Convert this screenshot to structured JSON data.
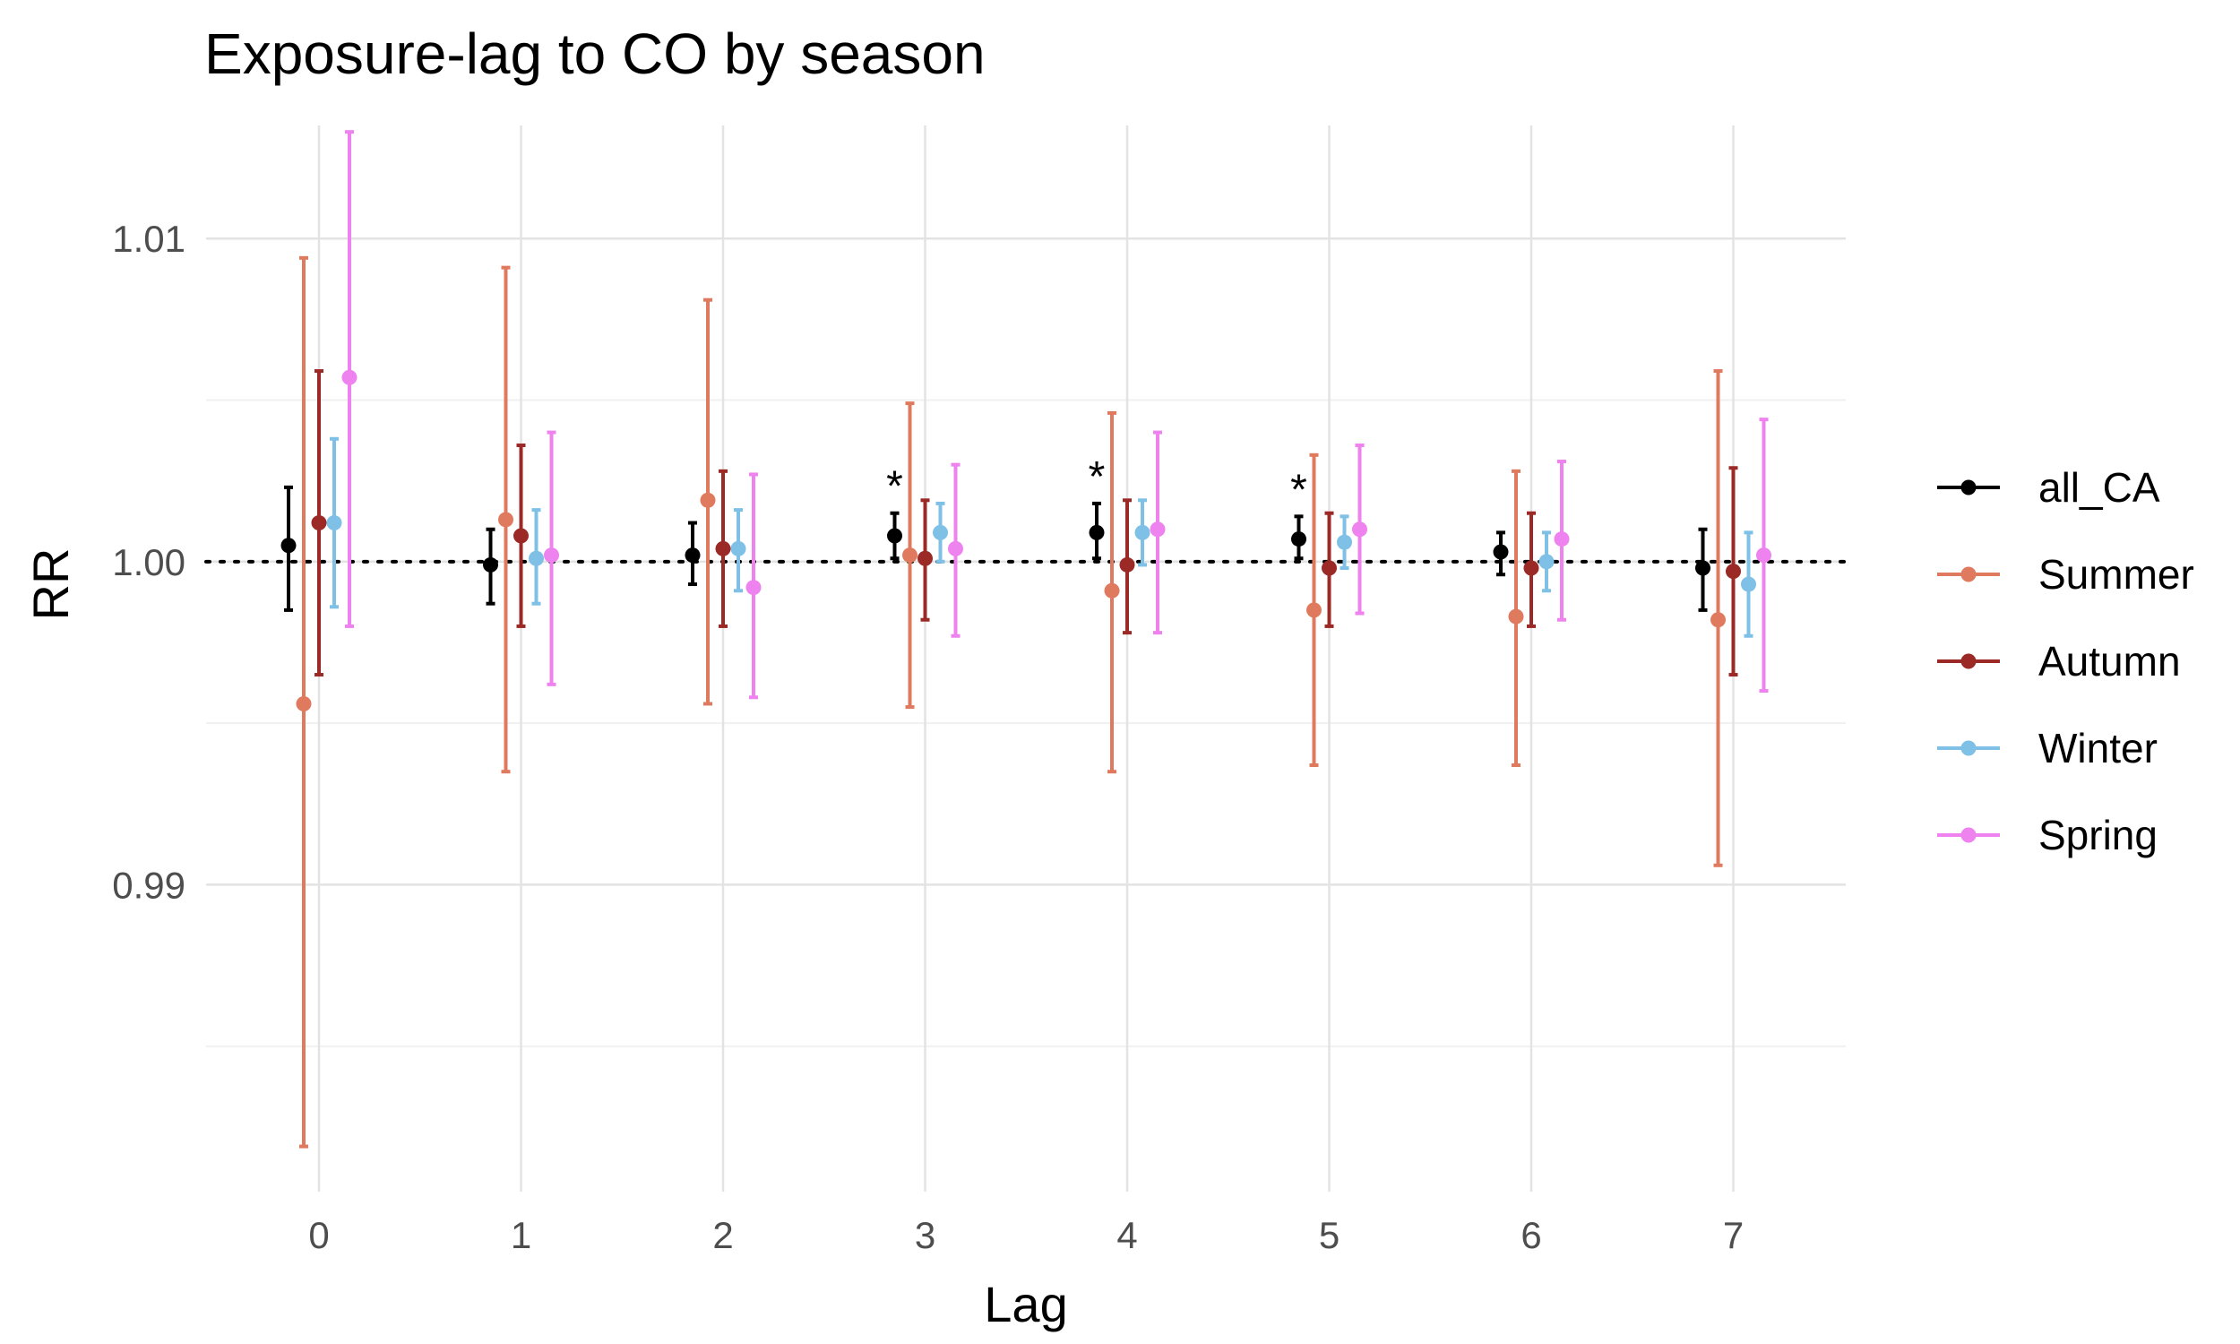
{
  "chart_data": {
    "type": "scatter",
    "title": "Exposure-lag to CO by season",
    "xlabel": "Lag",
    "ylabel": "RR",
    "categories": [
      "0",
      "1",
      "2",
      "3",
      "4",
      "5",
      "6",
      "7"
    ],
    "y_ticks": [
      "0.99",
      "1.00",
      "1.01"
    ],
    "y_tick_values": [
      0.99,
      1.0,
      1.01
    ],
    "ylim": [
      0.9805,
      1.0135
    ],
    "reference_line": 1.0,
    "grid": true,
    "legend_position": "right",
    "significance_marker": "*",
    "series": [
      {
        "name": "all_CA",
        "color": "#000000",
        "points": [
          {
            "x": "0",
            "y": 1.0005,
            "lo": 0.9985,
            "hi": 1.0023
          },
          {
            "x": "1",
            "y": 0.9999,
            "lo": 0.9987,
            "hi": 1.001
          },
          {
            "x": "2",
            "y": 1.0002,
            "lo": 0.9993,
            "hi": 1.0012
          },
          {
            "x": "3",
            "y": 1.0008,
            "lo": 1.0001,
            "hi": 1.0015,
            "sig": true
          },
          {
            "x": "4",
            "y": 1.0009,
            "lo": 1.0001,
            "hi": 1.0018,
            "sig": true
          },
          {
            "x": "5",
            "y": 1.0007,
            "lo": 1.0001,
            "hi": 1.0014,
            "sig": true
          },
          {
            "x": "6",
            "y": 1.0003,
            "lo": 0.9996,
            "hi": 1.0009
          },
          {
            "x": "7",
            "y": 0.9998,
            "lo": 0.9985,
            "hi": 1.001
          }
        ]
      },
      {
        "name": "Summer",
        "color": "#E07A5F",
        "points": [
          {
            "x": "0",
            "y": 0.9956,
            "lo": 0.9819,
            "hi": 1.0094
          },
          {
            "x": "1",
            "y": 1.0013,
            "lo": 0.9935,
            "hi": 1.0091
          },
          {
            "x": "2",
            "y": 1.0019,
            "lo": 0.9956,
            "hi": 1.0081
          },
          {
            "x": "3",
            "y": 1.0002,
            "lo": 0.9955,
            "hi": 1.0049
          },
          {
            "x": "4",
            "y": 0.9991,
            "lo": 0.9935,
            "hi": 1.0046
          },
          {
            "x": "5",
            "y": 0.9985,
            "lo": 0.9937,
            "hi": 1.0033
          },
          {
            "x": "6",
            "y": 0.9983,
            "lo": 0.9937,
            "hi": 1.0028
          },
          {
            "x": "7",
            "y": 0.9982,
            "lo": 0.9906,
            "hi": 1.0059
          }
        ]
      },
      {
        "name": "Autumn",
        "color": "#9B2A26",
        "points": [
          {
            "x": "0",
            "y": 1.0012,
            "lo": 0.9965,
            "hi": 1.0059
          },
          {
            "x": "1",
            "y": 1.0008,
            "lo": 0.998,
            "hi": 1.0036
          },
          {
            "x": "2",
            "y": 1.0004,
            "lo": 0.998,
            "hi": 1.0028
          },
          {
            "x": "3",
            "y": 1.0001,
            "lo": 0.9982,
            "hi": 1.0019
          },
          {
            "x": "4",
            "y": 0.9999,
            "lo": 0.9978,
            "hi": 1.0019
          },
          {
            "x": "5",
            "y": 0.9998,
            "lo": 0.998,
            "hi": 1.0015
          },
          {
            "x": "6",
            "y": 0.9998,
            "lo": 0.998,
            "hi": 1.0015
          },
          {
            "x": "7",
            "y": 0.9997,
            "lo": 0.9965,
            "hi": 1.0029
          }
        ]
      },
      {
        "name": "Winter",
        "color": "#7EC0E6",
        "points": [
          {
            "x": "0",
            "y": 1.0012,
            "lo": 0.9986,
            "hi": 1.0038
          },
          {
            "x": "1",
            "y": 1.0001,
            "lo": 0.9987,
            "hi": 1.0016
          },
          {
            "x": "2",
            "y": 1.0004,
            "lo": 0.9991,
            "hi": 1.0016
          },
          {
            "x": "3",
            "y": 1.0009,
            "lo": 1.0,
            "hi": 1.0018
          },
          {
            "x": "4",
            "y": 1.0009,
            "lo": 0.9999,
            "hi": 1.0019
          },
          {
            "x": "5",
            "y": 1.0006,
            "lo": 0.9998,
            "hi": 1.0014
          },
          {
            "x": "6",
            "y": 1.0,
            "lo": 0.9991,
            "hi": 1.0009
          },
          {
            "x": "7",
            "y": 0.9993,
            "lo": 0.9977,
            "hi": 1.0009
          }
        ]
      },
      {
        "name": "Spring",
        "color": "#EE82EE",
        "points": [
          {
            "x": "0",
            "y": 1.0057,
            "lo": 0.998,
            "hi": 1.0133
          },
          {
            "x": "1",
            "y": 1.0002,
            "lo": 0.9962,
            "hi": 1.004
          },
          {
            "x": "2",
            "y": 0.9992,
            "lo": 0.9958,
            "hi": 1.0027
          },
          {
            "x": "3",
            "y": 1.0004,
            "lo": 0.9977,
            "hi": 1.003
          },
          {
            "x": "4",
            "y": 1.001,
            "lo": 0.9978,
            "hi": 1.004
          },
          {
            "x": "5",
            "y": 1.001,
            "lo": 0.9984,
            "hi": 1.0036
          },
          {
            "x": "6",
            "y": 1.0007,
            "lo": 0.9982,
            "hi": 1.0031
          },
          {
            "x": "7",
            "y": 1.0002,
            "lo": 0.996,
            "hi": 1.0044
          }
        ]
      }
    ]
  }
}
